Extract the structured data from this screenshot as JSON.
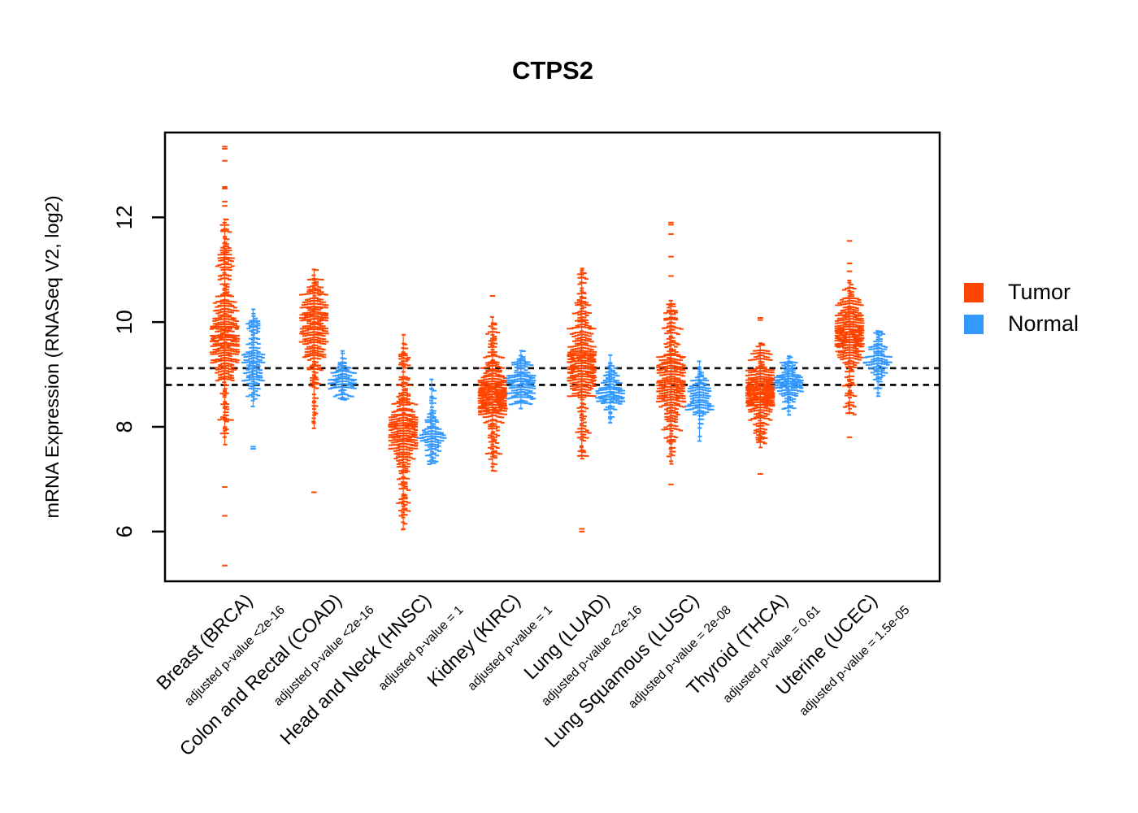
{
  "page": {
    "background": "#ffffff"
  },
  "chart_data": {
    "type": "beeswarm-violin",
    "title": "CTPS2",
    "ylabel": "mRNA Expression (RNASeq V2, log2)",
    "xlabel": "",
    "ylim": [
      5.05,
      13.62
    ],
    "yticks": [
      6,
      8,
      10,
      12
    ],
    "grid": false,
    "reference_lines": {
      "style": "dotted",
      "color": "#111111",
      "values": [
        9.12,
        8.8
      ]
    },
    "legend": {
      "position": "right",
      "items": [
        {
          "label": "Tumor",
          "color": "#FF4500"
        },
        {
          "label": "Normal",
          "color": "#3399FF"
        }
      ]
    },
    "groups": [
      {
        "label": "Breast (BRCA)",
        "pvalue_label": "adjusted p-value <2e-16",
        "series": [
          {
            "name": "Tumor",
            "n": 430,
            "components": [
              {
                "m": 9.65,
                "s": 0.42,
                "w": 0.62
              },
              {
                "m": 11.25,
                "s": 0.38,
                "w": 0.2
              },
              {
                "m": 10.3,
                "s": 0.25,
                "w": 0.08
              },
              {
                "m": 8.35,
                "s": 0.45,
                "w": 0.1
              }
            ],
            "range": [
              7.45,
              12.1
            ],
            "outliers": [
              13.35,
              13.31,
              13.08,
              12.58,
              12.55,
              12.3,
              12.22,
              6.85,
              6.3,
              5.35
            ]
          },
          {
            "name": "Normal",
            "n": 150,
            "components": [
              {
                "m": 9.12,
                "s": 0.3,
                "w": 0.8
              },
              {
                "m": 9.85,
                "s": 0.22,
                "w": 0.2
              }
            ],
            "range": [
              8.38,
              10.28
            ],
            "outliers": [
              7.62,
              7.58
            ]
          }
        ]
      },
      {
        "label": "Colon and Rectal (COAD)",
        "pvalue_label": "adjusted p-value <2e-16",
        "series": [
          {
            "name": "Tumor",
            "n": 330,
            "components": [
              {
                "m": 9.85,
                "s": 0.42,
                "w": 0.72
              },
              {
                "m": 10.55,
                "s": 0.28,
                "w": 0.16
              },
              {
                "m": 8.6,
                "s": 0.38,
                "w": 0.12
              }
            ],
            "range": [
              7.95,
              11.18
            ],
            "outliers": [
              6.75
            ]
          },
          {
            "name": "Normal",
            "n": 110,
            "components": [
              {
                "m": 8.92,
                "s": 0.22,
                "w": 1.0
              }
            ],
            "range": [
              8.35,
              9.52
            ],
            "outliers": []
          }
        ]
      },
      {
        "label": "Head and Neck (HNSC)",
        "pvalue_label": "adjusted p-value = 1",
        "series": [
          {
            "name": "Tumor",
            "n": 380,
            "components": [
              {
                "m": 7.92,
                "s": 0.34,
                "w": 0.7
              },
              {
                "m": 8.9,
                "s": 0.5,
                "w": 0.16
              },
              {
                "m": 6.6,
                "s": 0.38,
                "w": 0.14
              }
            ],
            "range": [
              5.98,
              9.95
            ],
            "outliers": []
          },
          {
            "name": "Normal",
            "n": 120,
            "components": [
              {
                "m": 7.82,
                "s": 0.26,
                "w": 0.85
              },
              {
                "m": 8.5,
                "s": 0.28,
                "w": 0.15
              }
            ],
            "range": [
              6.95,
              8.92
            ],
            "outliers": []
          }
        ]
      },
      {
        "label": "Kidney (KIRC)",
        "pvalue_label": "adjusted p-value = 1",
        "series": [
          {
            "name": "Tumor",
            "n": 420,
            "components": [
              {
                "m": 8.62,
                "s": 0.3,
                "w": 0.76
              },
              {
                "m": 9.45,
                "s": 0.42,
                "w": 0.14
              },
              {
                "m": 7.75,
                "s": 0.3,
                "w": 0.1
              }
            ],
            "range": [
              7.15,
              10.28
            ],
            "outliers": [
              10.5
            ]
          },
          {
            "name": "Normal",
            "n": 170,
            "components": [
              {
                "m": 8.85,
                "s": 0.26,
                "w": 1.0
              }
            ],
            "range": [
              8.02,
              9.5
            ],
            "outliers": []
          }
        ]
      },
      {
        "label": "Lung (LUAD)",
        "pvalue_label": "adjusted p-value <2e-16",
        "series": [
          {
            "name": "Tumor",
            "n": 420,
            "components": [
              {
                "m": 9.25,
                "s": 0.4,
                "w": 0.72
              },
              {
                "m": 10.45,
                "s": 0.32,
                "w": 0.14
              },
              {
                "m": 8.0,
                "s": 0.42,
                "w": 0.14
              }
            ],
            "range": [
              6.95,
              11.15
            ],
            "outliers": [
              6.05,
              6.0
            ]
          },
          {
            "name": "Normal",
            "n": 140,
            "components": [
              {
                "m": 8.68,
                "s": 0.24,
                "w": 1.0
              }
            ],
            "range": [
              7.72,
              9.4
            ],
            "outliers": []
          }
        ]
      },
      {
        "label": "Lung Squamous (LUSC)",
        "pvalue_label": "adjusted p-value = 2e-08",
        "series": [
          {
            "name": "Tumor",
            "n": 380,
            "components": [
              {
                "m": 8.85,
                "s": 0.38,
                "w": 0.68
              },
              {
                "m": 10.0,
                "s": 0.28,
                "w": 0.17
              },
              {
                "m": 7.85,
                "s": 0.3,
                "w": 0.15
              }
            ],
            "range": [
              6.88,
              10.5
            ],
            "outliers": [
              11.9,
              11.86,
              11.68,
              11.25,
              10.88,
              6.9
            ]
          },
          {
            "name": "Normal",
            "n": 130,
            "components": [
              {
                "m": 8.55,
                "s": 0.27,
                "w": 1.0
              }
            ],
            "range": [
              7.42,
              9.28
            ],
            "outliers": []
          }
        ]
      },
      {
        "label": "Thyroid (THCA)",
        "pvalue_label": "adjusted p-value = 0.61",
        "series": [
          {
            "name": "Tumor",
            "n": 400,
            "components": [
              {
                "m": 8.65,
                "s": 0.27,
                "w": 0.8
              },
              {
                "m": 9.35,
                "s": 0.22,
                "w": 0.1
              },
              {
                "m": 7.95,
                "s": 0.22,
                "w": 0.1
              }
            ],
            "range": [
              7.6,
              9.6
            ],
            "outliers": [
              10.08,
              10.04,
              7.1
            ]
          },
          {
            "name": "Normal",
            "n": 160,
            "components": [
              {
                "m": 8.82,
                "s": 0.24,
                "w": 1.0
              }
            ],
            "range": [
              8.0,
              9.58
            ],
            "outliers": []
          }
        ]
      },
      {
        "label": "Uterine (UCEC)",
        "pvalue_label": "adjusted p-value = 1.5e-05",
        "series": [
          {
            "name": "Tumor",
            "n": 390,
            "components": [
              {
                "m": 9.72,
                "s": 0.3,
                "w": 0.62
              },
              {
                "m": 10.25,
                "s": 0.28,
                "w": 0.22
              },
              {
                "m": 8.85,
                "s": 0.38,
                "w": 0.16
              }
            ],
            "range": [
              8.2,
              10.9
            ],
            "outliers": [
              11.55,
              11.12,
              10.97,
              7.8
            ]
          },
          {
            "name": "Normal",
            "n": 110,
            "components": [
              {
                "m": 9.35,
                "s": 0.26,
                "w": 1.0
              }
            ],
            "range": [
              8.55,
              9.85
            ],
            "outliers": []
          }
        ]
      }
    ]
  }
}
